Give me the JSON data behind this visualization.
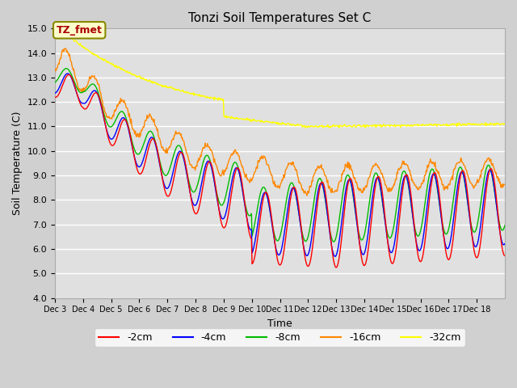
{
  "title": "Tonzi Soil Temperatures Set C",
  "xlabel": "Time",
  "ylabel": "Soil Temperature (C)",
  "ylim": [
    4.0,
    15.0
  ],
  "yticks": [
    4.0,
    5.0,
    6.0,
    7.0,
    8.0,
    9.0,
    10.0,
    11.0,
    12.0,
    13.0,
    14.0,
    15.0
  ],
  "xtick_labels": [
    "Dec 3",
    "Dec 4",
    "Dec 5",
    "Dec 6",
    "Dec 7",
    "Dec 8",
    "Dec 9",
    "Dec 10",
    "Dec 11",
    "Dec 12",
    "Dec 13",
    "Dec 14",
    "Dec 15",
    "Dec 16",
    "Dec 17",
    "Dec 18"
  ],
  "series_colors": {
    "-2cm": "#ff0000",
    "-4cm": "#0000ff",
    "-8cm": "#00bb00",
    "-16cm": "#ff8800",
    "-32cm": "#ffff00"
  },
  "annotation_text": "TZ_fmet",
  "annotation_color": "#aa0000",
  "annotation_bg": "#ffffcc",
  "plot_bg": "#e0e0e0",
  "fig_bg": "#d0d0d0",
  "grid_color": "#ffffff",
  "title_fontsize": 11,
  "axis_label_fontsize": 9,
  "tick_fontsize": 8,
  "legend_fontsize": 9,
  "linewidth": 1.0
}
